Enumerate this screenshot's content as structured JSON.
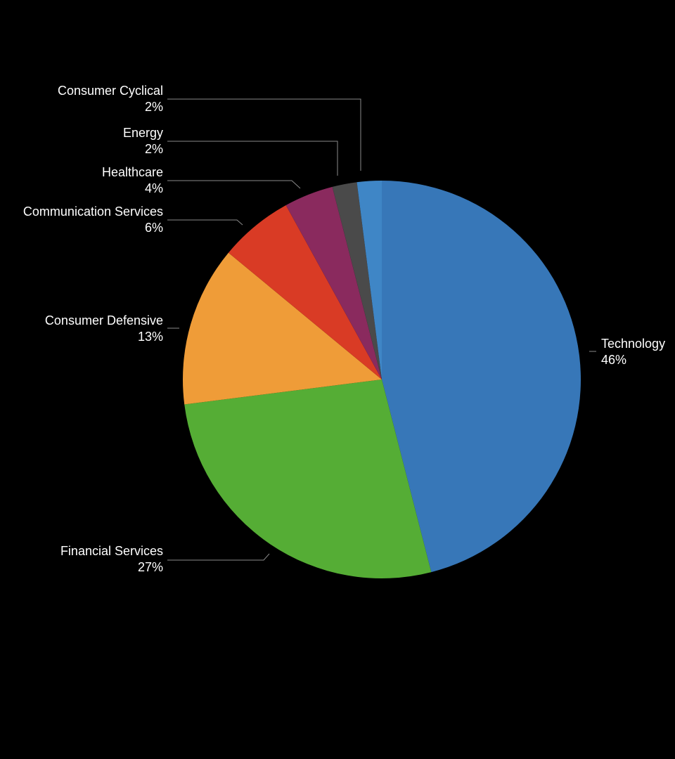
{
  "chart_data": {
    "type": "pie",
    "categories": [
      "Technology",
      "Financial Services",
      "Consumer Defensive",
      "Communication Services",
      "Healthcare",
      "Energy",
      "Consumer Cyclical"
    ],
    "values": [
      46,
      27,
      13,
      6,
      4,
      2,
      2
    ],
    "value_labels": [
      "46%",
      "27%",
      "13%",
      "6%",
      "4%",
      "2%",
      "2%"
    ],
    "colors": [
      "#3777b8",
      "#55ad35",
      "#ef9c38",
      "#d93b25",
      "#8a2a5e",
      "#4a4a4a",
      "#3f86c6"
    ]
  }
}
